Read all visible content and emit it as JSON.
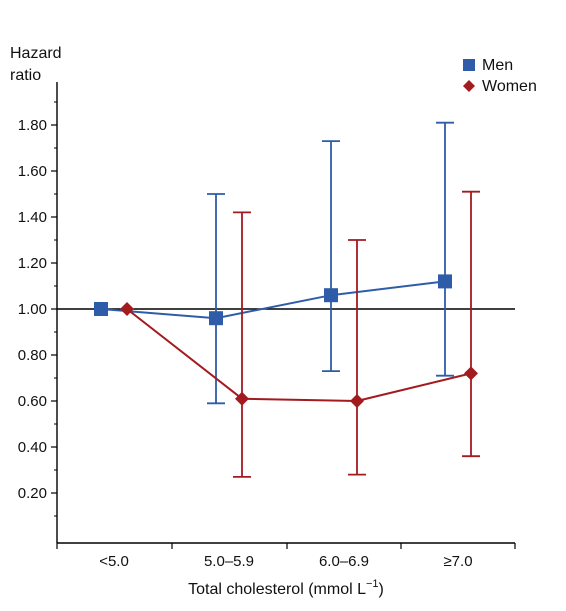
{
  "chart_data": {
    "type": "line",
    "title": "",
    "ylabel_line1": "Hazard",
    "ylabel_line2": "ratio",
    "xlabel_main": "Total cholesterol (mmol L",
    "xlabel_sup": "−1",
    "xlabel_end": ")",
    "categories": [
      "<5.0",
      "5.0–5.9",
      "6.0–6.9",
      "≥7.0"
    ],
    "y_tick_labels": [
      "0.20",
      "0.40",
      "0.60",
      "0.80",
      "1.00",
      "1.20",
      "1.40",
      "1.60",
      "1.80"
    ],
    "y_ticks": [
      0.2,
      0.4,
      0.6,
      0.8,
      1.0,
      1.2,
      1.4,
      1.6,
      1.8
    ],
    "ylim": [
      0.0,
      2.0
    ],
    "reference_line": 1.0,
    "legend_position": "top-right",
    "grid": false,
    "series": [
      {
        "name": "Men",
        "color": "#2f5ca8",
        "marker": "square",
        "values": [
          1.0,
          0.96,
          1.06,
          1.12
        ],
        "ci_low": [
          null,
          0.59,
          0.73,
          0.71
        ],
        "ci_high": [
          null,
          1.5,
          1.73,
          1.81
        ]
      },
      {
        "name": "Women",
        "color": "#a31a1f",
        "marker": "diamond",
        "values": [
          1.0,
          0.61,
          0.6,
          0.72
        ],
        "ci_low": [
          null,
          0.27,
          0.28,
          0.36
        ],
        "ci_high": [
          null,
          1.42,
          1.3,
          1.51
        ]
      }
    ]
  }
}
